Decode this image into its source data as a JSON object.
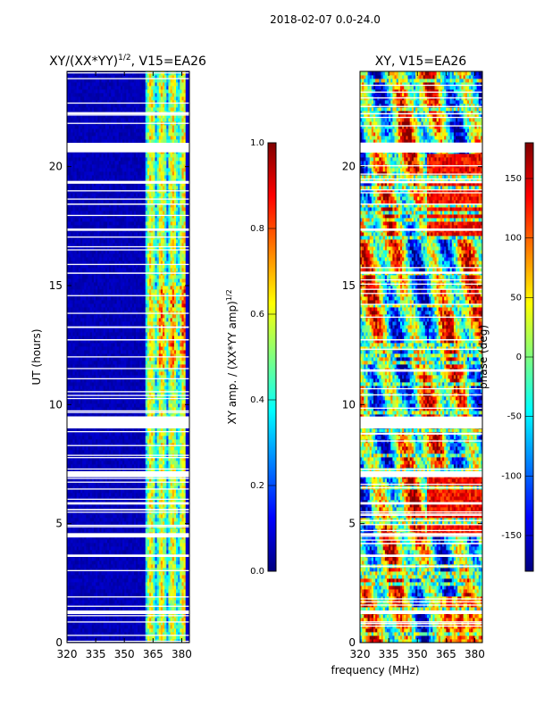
{
  "figure": {
    "suptitle": "2018-02-07 0.0-24.0",
    "xlabel_shared": "frequency (MHz)"
  },
  "colors": {
    "background": "#ffffff",
    "axis": "#000000",
    "flag_rows": "#ffffff",
    "jet": [
      "#00007f",
      "#0000ff",
      "#007fff",
      "#00ffff",
      "#7fff7f",
      "#ffff00",
      "#ff7f00",
      "#ff0000",
      "#7f0000"
    ]
  },
  "chart_data": [
    {
      "type": "heatmap",
      "title": "XY/(XX*YY)^{1/2}, V15=EA26",
      "title_base": "XY/(XX*YY)",
      "title_exp": "1/2",
      "title_suffix": ", V15=EA26",
      "xlabel": "",
      "ylabel": "UT (hours)",
      "xlim": [
        320,
        384
      ],
      "ylim": [
        0,
        24
      ],
      "xticks": [
        "320",
        "335",
        "350",
        "365",
        "380"
      ],
      "yticks": [
        "0",
        "5",
        "10",
        "15",
        "20"
      ],
      "colormap": "jet",
      "description_values": "low normalized amplitude (~0.05) below 361 MHz, elevated bands 0.3-0.8 between 361 and 384 MHz",
      "low_region_mhz": [
        320,
        361
      ],
      "high_region_mhz": [
        361,
        384
      ],
      "flagged_ut_ranges": [
        [
          20.6,
          21.0
        ],
        [
          9.0,
          9.5
        ],
        [
          6.95,
          7.2
        ],
        [
          1.2,
          1.35
        ],
        [
          3.6,
          3.7
        ],
        [
          4.5,
          4.6
        ],
        [
          5.8,
          5.9
        ],
        [
          12.7,
          12.75
        ],
        [
          15.5,
          15.55
        ],
        [
          17.3,
          17.4
        ],
        [
          18.4,
          18.45
        ],
        [
          19.3,
          19.4
        ],
        [
          22.2,
          22.25
        ]
      ],
      "colorbar": {
        "label_base": "XY amp. / (XX*YY amp)",
        "label_exp": "1/2",
        "range": [
          0.0,
          1.0
        ],
        "ticks": [
          "0.0",
          "0.2",
          "0.4",
          "0.6",
          "0.8",
          "1.0"
        ]
      }
    },
    {
      "type": "heatmap",
      "title": "XY, V15=EA26",
      "xlabel": "frequency (MHz)",
      "ylabel": "",
      "xlim": [
        320,
        384
      ],
      "ylim": [
        0,
        24
      ],
      "xticks": [
        "320",
        "335",
        "350",
        "365",
        "380"
      ],
      "yticks": [
        "0",
        "5",
        "10",
        "15",
        "20"
      ],
      "colormap": "jet",
      "description_values": "phase in degrees, highly variable; mostly red/orange (100-180) above 355 MHz from 5-7 UT and 17-20 UT",
      "flagged_ut_ranges": [
        [
          20.6,
          21.0
        ],
        [
          9.0,
          9.5
        ],
        [
          6.95,
          7.2
        ],
        [
          1.2,
          1.35
        ],
        [
          3.6,
          3.7
        ],
        [
          4.5,
          4.6
        ],
        [
          5.8,
          5.9
        ],
        [
          12.7,
          12.75
        ],
        [
          15.5,
          15.55
        ],
        [
          17.3,
          17.4
        ],
        [
          18.4,
          18.45
        ],
        [
          19.3,
          19.4
        ],
        [
          22.2,
          22.25
        ]
      ],
      "colorbar": {
        "label": "phase (deg)",
        "range": [
          -180,
          180
        ],
        "ticks": [
          "-150",
          "-100",
          "-50",
          "0",
          "50",
          "100",
          "150"
        ]
      }
    }
  ]
}
